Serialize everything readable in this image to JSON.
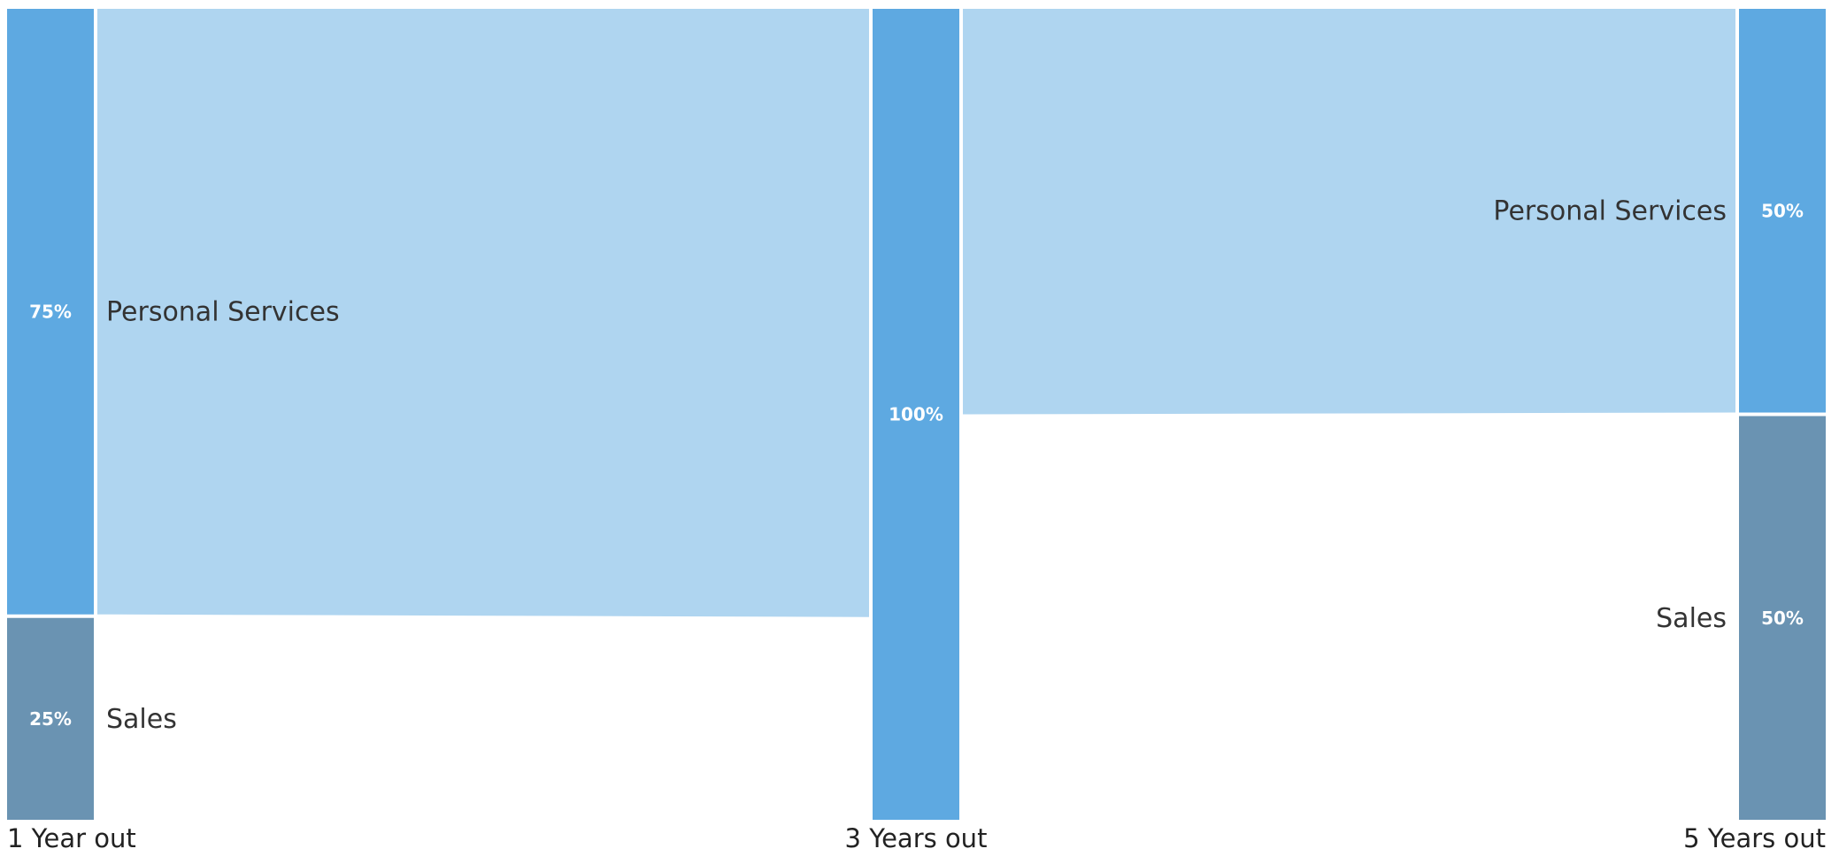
{
  "chart_data": {
    "type": "sankey",
    "title": "",
    "stages": [
      "1 Year out",
      "3 Years out",
      "5 Years out"
    ],
    "nodes": [
      {
        "stage": 0,
        "name": "Personal Services",
        "value": 75,
        "label": "75%",
        "color": "#5ea9e1"
      },
      {
        "stage": 0,
        "name": "Sales",
        "value": 25,
        "label": "25%",
        "color": "#6a93b2"
      },
      {
        "stage": 1,
        "name": "",
        "value": 100,
        "label": "100%",
        "color": "#5ea9e1"
      },
      {
        "stage": 2,
        "name": "Personal Services",
        "value": 50,
        "label": "50%",
        "color": "#5ea9e1"
      },
      {
        "stage": 2,
        "name": "Sales",
        "value": 50,
        "label": "50%",
        "color": "#6a93b2"
      }
    ],
    "links": [
      {
        "from": 0,
        "to": 2,
        "value": 75
      },
      {
        "from": 2,
        "to": 3,
        "value": 50
      },
      {
        "from": 2,
        "to": 4,
        "value": 50
      }
    ],
    "link_color": "#afd5f0",
    "visible_links": [
      0,
      1
    ]
  }
}
